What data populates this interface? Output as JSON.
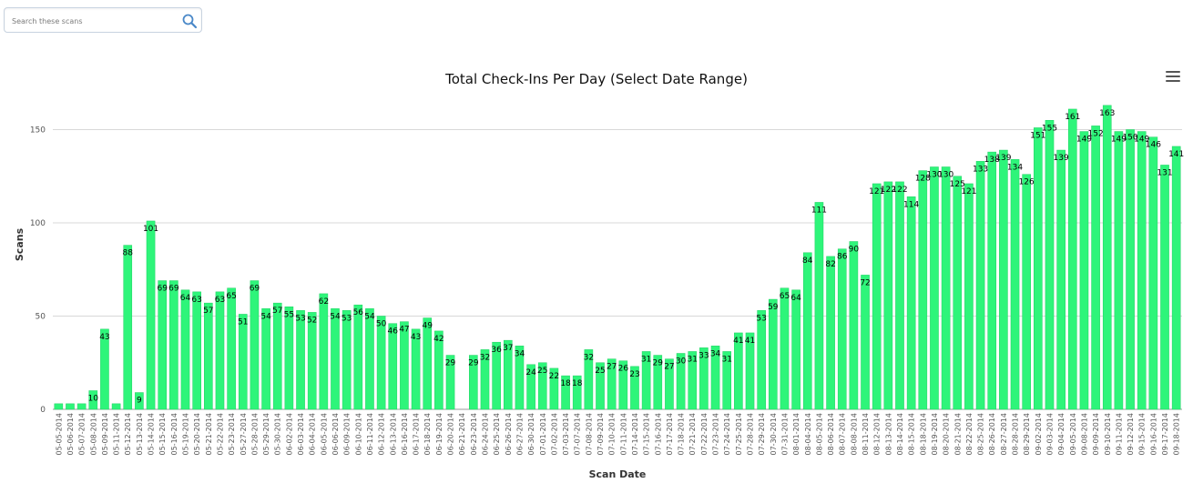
{
  "search": {
    "placeholder": "Search these scans",
    "value": ""
  },
  "menu": {
    "icon": "hamburger-menu-icon"
  },
  "chart_data": {
    "type": "bar",
    "title": "Total Check-Ins Per Day (Select Date Range)",
    "xlabel": "Scan Date",
    "ylabel": "Scans",
    "ylim": [
      0,
      160
    ],
    "yticks": [
      0,
      50,
      100,
      150
    ],
    "grid": true,
    "bar_color": "#2ef57a",
    "categories": [
      "05-05-2014",
      "05-06-2014",
      "05-07-2014",
      "05-08-2014",
      "05-09-2014",
      "05-11-2014",
      "05-12-2014",
      "05-13-2014",
      "05-14-2014",
      "05-15-2014",
      "05-16-2014",
      "05-19-2014",
      "05-20-2014",
      "05-21-2014",
      "05-22-2014",
      "05-23-2014",
      "05-27-2014",
      "05-28-2014",
      "05-29-2014",
      "05-30-2014",
      "06-02-2014",
      "06-03-2014",
      "06-04-2014",
      "06-05-2014",
      "06-06-2014",
      "06-09-2014",
      "06-10-2014",
      "06-11-2014",
      "06-12-2014",
      "06-13-2014",
      "06-16-2014",
      "06-17-2014",
      "06-18-2014",
      "06-19-2014",
      "06-20-2014",
      "06-21-2014",
      "06-23-2014",
      "06-24-2014",
      "06-25-2014",
      "06-26-2014",
      "06-27-2014",
      "06-30-2014",
      "07-01-2014",
      "07-02-2014",
      "07-03-2014",
      "07-07-2014",
      "07-08-2014",
      "07-09-2014",
      "07-10-2014",
      "07-11-2014",
      "07-14-2014",
      "07-15-2014",
      "07-16-2014",
      "07-17-2014",
      "07-18-2014",
      "07-21-2014",
      "07-22-2014",
      "07-23-2014",
      "07-24-2014",
      "07-25-2014",
      "07-28-2014",
      "07-29-2014",
      "07-30-2014",
      "07-31-2014",
      "08-01-2014",
      "08-04-2014",
      "08-05-2014",
      "08-06-2014",
      "08-07-2014",
      "08-08-2014",
      "08-11-2014",
      "08-12-2014",
      "08-13-2014",
      "08-14-2014",
      "08-15-2014",
      "08-18-2014",
      "08-19-2014",
      "08-20-2014",
      "08-21-2014",
      "08-22-2014",
      "08-25-2014",
      "08-26-2014",
      "08-27-2014",
      "08-28-2014",
      "08-29-2014",
      "09-02-2014",
      "09-03-2014",
      "09-04-2014",
      "09-05-2014",
      "09-08-2014",
      "09-09-2014",
      "09-10-2014",
      "09-11-2014",
      "09-12-2014",
      "09-15-2014",
      "09-16-2014",
      "09-17-2014",
      "09-18-2014"
    ],
    "values": [
      3,
      3,
      3,
      10,
      43,
      3,
      88,
      9,
      101,
      69,
      69,
      64,
      63,
      57,
      63,
      65,
      51,
      69,
      54,
      57,
      55,
      53,
      52,
      62,
      54,
      53,
      56,
      54,
      50,
      46,
      47,
      43,
      49,
      42,
      29,
      0,
      29,
      32,
      36,
      37,
      34,
      24,
      25,
      22,
      18,
      18,
      32,
      25,
      27,
      26,
      23,
      31,
      29,
      27,
      30,
      31,
      33,
      34,
      31,
      41,
      41,
      53,
      59,
      65,
      64,
      84,
      111,
      82,
      86,
      90,
      72,
      121,
      122,
      122,
      114,
      128,
      130,
      130,
      125,
      121,
      133,
      138,
      139,
      134,
      126,
      151,
      155,
      139,
      161,
      149,
      152,
      163,
      149,
      150,
      149,
      146,
      131,
      141
    ],
    "data_labels": [
      null,
      null,
      null,
      "10",
      "43",
      null,
      "88",
      "9",
      "101",
      "69",
      "69",
      "64",
      "63",
      "57",
      "63",
      "65",
      "51",
      "69",
      "54",
      "57",
      "55",
      "53",
      "52",
      "62",
      "54",
      "53",
      "56",
      "54",
      "50",
      "46",
      "47",
      "43",
      "49",
      "42",
      "29",
      null,
      "29",
      "32",
      "36",
      "37",
      "34",
      "24",
      "25",
      "22",
      "18",
      "18",
      "32",
      "25",
      "27",
      "26",
      "23",
      "31",
      "29",
      "27",
      "30",
      "31",
      "33",
      "34",
      "31",
      "41",
      "41",
      "53",
      "59",
      "65",
      "64",
      "84",
      "111",
      "82",
      "86",
      "90",
      "72",
      "121",
      "122",
      "122",
      "114",
      "128",
      "130",
      "130",
      "125",
      "121",
      "133",
      "138",
      "139",
      "134",
      "126",
      "151",
      "155",
      "139",
      "161",
      "149",
      "152",
      "163",
      "149",
      "150",
      "149",
      "146",
      "131",
      "141"
    ]
  }
}
